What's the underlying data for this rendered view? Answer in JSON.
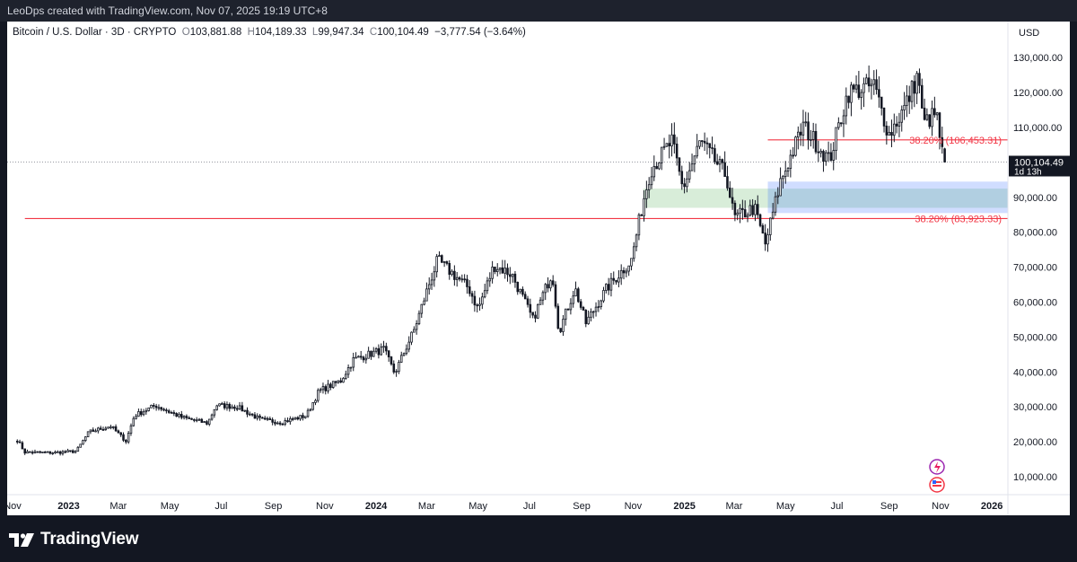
{
  "header": {
    "credit": "LeoDps created with TradingView.com, Nov 07, 2025 19:19 UTC+8"
  },
  "legend": {
    "symbol": "Bitcoin / U.S. Dollar · 3D · CRYPTO",
    "open_label": "O",
    "open": "103,881.88",
    "high_label": "H",
    "high": "104,189.33",
    "low_label": "L",
    "low": "99,947.34",
    "close_label": "C",
    "close": "100,104.49",
    "change": "−3,777.54 (−3.64%)"
  },
  "price_axis": {
    "currency": "USD",
    "ticks": [
      "130,000.00",
      "120,000.00",
      "110,000.00",
      "100,000.00",
      "90,000.00",
      "80,000.00",
      "70,000.00",
      "60,000.00",
      "50,000.00",
      "40,000.00",
      "30,000.00",
      "20,000.00",
      "10,000.00"
    ],
    "last_price_label": "100,104.49",
    "countdown": "1d 13h"
  },
  "time_axis": {
    "labels": [
      {
        "t": "Nov",
        "bold": false
      },
      {
        "t": "2023",
        "bold": true
      },
      {
        "t": "Mar",
        "bold": false
      },
      {
        "t": "May",
        "bold": false
      },
      {
        "t": "Jul",
        "bold": false
      },
      {
        "t": "Sep",
        "bold": false
      },
      {
        "t": "Nov",
        "bold": false
      },
      {
        "t": "2024",
        "bold": true
      },
      {
        "t": "Mar",
        "bold": false
      },
      {
        "t": "May",
        "bold": false
      },
      {
        "t": "Jul",
        "bold": false
      },
      {
        "t": "Sep",
        "bold": false
      },
      {
        "t": "Nov",
        "bold": false
      },
      {
        "t": "2025",
        "bold": true
      },
      {
        "t": "Mar",
        "bold": false
      },
      {
        "t": "May",
        "bold": false
      },
      {
        "t": "Jul",
        "bold": false
      },
      {
        "t": "Sep",
        "bold": false
      },
      {
        "t": "Nov",
        "bold": false
      },
      {
        "t": "2026",
        "bold": true
      }
    ]
  },
  "chart_data": {
    "type": "candlestick",
    "title": "Bitcoin / U.S. Dollar · 3D · CRYPTO",
    "ylabel": "USD",
    "ylim": [
      5000,
      135000
    ],
    "y_ticks": [
      10000,
      20000,
      30000,
      40000,
      50000,
      60000,
      70000,
      80000,
      90000,
      100000,
      110000,
      120000,
      130000
    ],
    "x_range": [
      "2022-10-20",
      "2026-01-20"
    ],
    "price_path": [
      {
        "date": "2022-11-01",
        "price": 20500
      },
      {
        "date": "2022-11-10",
        "price": 17000
      },
      {
        "date": "2022-12-15",
        "price": 16900
      },
      {
        "date": "2023-01-10",
        "price": 17300
      },
      {
        "date": "2023-01-25",
        "price": 22800
      },
      {
        "date": "2023-02-20",
        "price": 24500
      },
      {
        "date": "2023-03-10",
        "price": 20200
      },
      {
        "date": "2023-03-20",
        "price": 27500
      },
      {
        "date": "2023-04-14",
        "price": 30400
      },
      {
        "date": "2023-05-15",
        "price": 27000
      },
      {
        "date": "2023-06-15",
        "price": 25300
      },
      {
        "date": "2023-06-25",
        "price": 30500
      },
      {
        "date": "2023-07-20",
        "price": 30000
      },
      {
        "date": "2023-08-17",
        "price": 26300
      },
      {
        "date": "2023-09-10",
        "price": 25600
      },
      {
        "date": "2023-10-10",
        "price": 27500
      },
      {
        "date": "2023-10-25",
        "price": 34500
      },
      {
        "date": "2023-11-20",
        "price": 37500
      },
      {
        "date": "2023-12-05",
        "price": 43500
      },
      {
        "date": "2024-01-10",
        "price": 46500
      },
      {
        "date": "2024-01-23",
        "price": 39600
      },
      {
        "date": "2024-02-15",
        "price": 52000
      },
      {
        "date": "2024-03-05",
        "price": 66000
      },
      {
        "date": "2024-03-14",
        "price": 72000
      },
      {
        "date": "2024-04-20",
        "price": 64000
      },
      {
        "date": "2024-05-01",
        "price": 58000
      },
      {
        "date": "2024-05-20",
        "price": 70500
      },
      {
        "date": "2024-06-10",
        "price": 68000
      },
      {
        "date": "2024-07-05",
        "price": 55000
      },
      {
        "date": "2024-07-28",
        "price": 68500
      },
      {
        "date": "2024-08-05",
        "price": 51500
      },
      {
        "date": "2024-08-24",
        "price": 64000
      },
      {
        "date": "2024-09-06",
        "price": 54000
      },
      {
        "date": "2024-10-01",
        "price": 64000
      },
      {
        "date": "2024-10-30",
        "price": 72000
      },
      {
        "date": "2024-11-13",
        "price": 89000
      },
      {
        "date": "2024-11-22",
        "price": 98000
      },
      {
        "date": "2024-12-17",
        "price": 106000
      },
      {
        "date": "2024-12-30",
        "price": 92500
      },
      {
        "date": "2025-01-20",
        "price": 106000
      },
      {
        "date": "2025-02-20",
        "price": 96000
      },
      {
        "date": "2025-03-01",
        "price": 84000
      },
      {
        "date": "2025-03-25",
        "price": 87000
      },
      {
        "date": "2025-04-07",
        "price": 76500
      },
      {
        "date": "2025-04-25",
        "price": 94500
      },
      {
        "date": "2025-05-22",
        "price": 110500
      },
      {
        "date": "2025-06-22",
        "price": 100500
      },
      {
        "date": "2025-07-14",
        "price": 120000
      },
      {
        "date": "2025-08-14",
        "price": 122000
      },
      {
        "date": "2025-09-01",
        "price": 108000
      },
      {
        "date": "2025-09-20",
        "price": 116000
      },
      {
        "date": "2025-10-06",
        "price": 125500
      },
      {
        "date": "2025-10-11",
        "price": 111000
      },
      {
        "date": "2025-10-27",
        "price": 114000
      },
      {
        "date": "2025-11-04",
        "price": 101000
      },
      {
        "date": "2025-11-07",
        "price": 100104.49
      }
    ],
    "last_candle": {
      "open": 103881.88,
      "high": 104189.33,
      "low": 99947.34,
      "close": 100104.49
    },
    "horizontal_lines": [
      {
        "price": 106453.31,
        "label": "38.20% (106,453.31)",
        "color": "#f23645",
        "start": "2025-04-10"
      },
      {
        "price": 83923.33,
        "label": "38.20% (83,923.33)",
        "color": "#f23645",
        "start": "2022-11-10"
      }
    ],
    "zones": [
      {
        "x0": "2024-11-13",
        "x1": "2026-01-20",
        "y0": 87000,
        "y1": 92500,
        "color": "#4caf50"
      },
      {
        "x0": "2025-04-10",
        "x1": "2026-01-20",
        "y0": 85500,
        "y1": 94500,
        "color": "#2962ff"
      }
    ],
    "last_price_line": 100104.49,
    "grid": false
  }
}
